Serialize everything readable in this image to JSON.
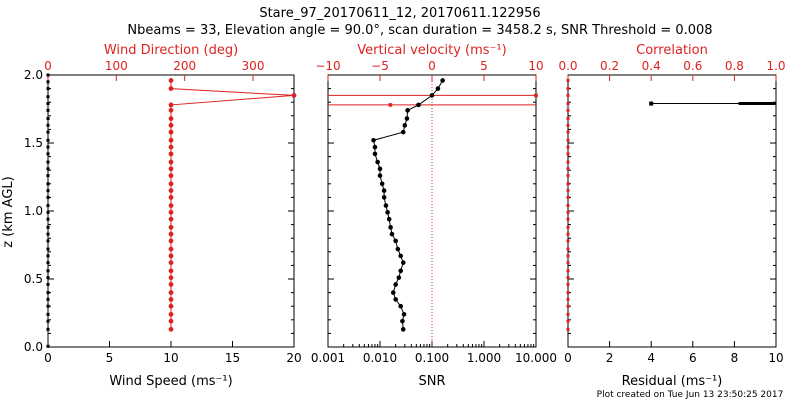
{
  "title_line1": "Stare_97_20170611_12, 20170611.122956",
  "title_line2": "Nbeams = 33, Elevation angle = 90.0°, scan duration = 3458.2 s, SNR Threshold = 0.008",
  "footer": "Plot created on Tue Jun 13 23:50:25 2017",
  "colors": {
    "axis": "#000000",
    "red": "#dd2222",
    "black": "#000000"
  },
  "chart_data": [
    {
      "type": "scatter",
      "name": "wind",
      "ylabel": "z (km AGL)",
      "ylim": [
        0,
        2.0
      ],
      "yticks": [
        "0.0",
        "0.5",
        "1.0",
        "1.5",
        "2.0"
      ],
      "yticks_values": [
        0,
        0.5,
        1.0,
        1.5,
        2.0
      ],
      "bottom_axis": {
        "label": "Wind Speed (ms⁻¹)",
        "lim": [
          0,
          20
        ],
        "ticks": [
          "0",
          "5",
          "10",
          "15",
          "20"
        ],
        "tick_values": [
          0,
          5,
          10,
          15,
          20
        ]
      },
      "top_axis": {
        "label": "Wind Direction (deg)",
        "lim": [
          0,
          360
        ],
        "ticks": [
          "0",
          "100",
          "200",
          "300"
        ],
        "tick_values": [
          0,
          100,
          200,
          300
        ]
      },
      "speed_z": [
        0.005,
        0.13,
        0.19,
        0.24,
        0.3,
        0.35,
        0.4,
        0.46,
        0.51,
        0.56,
        0.62,
        0.67,
        0.72,
        0.78,
        0.83,
        0.88,
        0.94,
        0.99,
        1.04,
        1.1,
        1.15,
        1.2,
        1.26,
        1.31,
        1.36,
        1.42,
        1.47,
        1.52,
        1.58,
        1.63,
        1.68,
        1.74,
        1.79,
        1.84,
        1.9,
        1.95,
        2.0
      ],
      "speed_values": [
        0,
        0,
        0,
        0,
        0,
        0,
        0,
        0,
        0,
        0,
        0,
        0,
        0,
        0,
        0,
        0,
        0,
        0,
        0,
        0,
        0,
        0,
        0,
        0,
        0,
        0,
        0,
        0,
        0,
        0,
        0,
        0,
        0,
        0,
        0,
        0,
        0
      ],
      "direction": {
        "z": [
          0.13,
          0.19,
          0.24,
          0.3,
          0.35,
          0.4,
          0.46,
          0.51,
          0.56,
          0.62,
          0.67,
          0.72,
          0.78,
          0.83,
          0.88,
          0.94,
          0.99,
          1.04,
          1.1,
          1.15,
          1.2,
          1.26,
          1.31,
          1.36,
          1.42,
          1.47,
          1.52,
          1.58,
          1.63,
          1.68,
          1.74,
          1.78,
          1.85,
          1.9,
          1.96
        ],
        "values": [
          180,
          180,
          180,
          180,
          180,
          180,
          180,
          180,
          180,
          180,
          180,
          180,
          180,
          180,
          180,
          180,
          180,
          180,
          180,
          180,
          180,
          180,
          180,
          180,
          180,
          180,
          180,
          180,
          180,
          180,
          180,
          180,
          360,
          180,
          180
        ]
      }
    },
    {
      "type": "line",
      "name": "velocity",
      "ylim": [
        0,
        2.0
      ],
      "bottom_axis": {
        "label": "SNR",
        "scale": "log",
        "lim": [
          0.001,
          10.0
        ],
        "ticks": [
          "0.001",
          "0.010",
          "0.100",
          "1.000",
          "10.000"
        ],
        "tick_values": [
          0.001,
          0.01,
          0.1,
          1.0,
          10.0
        ]
      },
      "top_axis": {
        "label": "Vertical velocity (ms⁻¹)",
        "lim": [
          -10,
          10
        ],
        "ticks": [
          "−10",
          "−5",
          "0",
          "5",
          "10"
        ],
        "tick_values": [
          -10,
          -5,
          0,
          5,
          10
        ]
      },
      "snr": {
        "z": [
          0.13,
          0.19,
          0.24,
          0.3,
          0.35,
          0.4,
          0.46,
          0.51,
          0.56,
          0.62,
          0.67,
          0.72,
          0.78,
          0.83,
          0.88,
          0.94,
          0.99,
          1.04,
          1.1,
          1.15,
          1.2,
          1.26,
          1.31,
          1.36,
          1.42,
          1.47,
          1.52,
          1.58,
          1.63,
          1.68,
          1.74,
          1.78,
          1.85,
          1.9,
          1.96
        ],
        "values": [
          0.028,
          0.027,
          0.029,
          0.025,
          0.02,
          0.018,
          0.02,
          0.023,
          0.025,
          0.028,
          0.025,
          0.022,
          0.02,
          0.017,
          0.016,
          0.015,
          0.014,
          0.013,
          0.012,
          0.012,
          0.011,
          0.01,
          0.01,
          0.009,
          0.008,
          0.008,
          0.0075,
          0.028,
          0.03,
          0.033,
          0.034,
          0.055,
          0.1,
          0.13,
          0.16
        ]
      },
      "vertical_velocity": {
        "z": [
          1.78,
          1.85
        ],
        "values": [
          -4.0,
          10.0
        ]
      }
    },
    {
      "type": "scatter",
      "name": "correlation",
      "ylim": [
        0,
        2.0
      ],
      "bottom_axis": {
        "label": "Residual (ms⁻¹)",
        "lim": [
          0,
          10
        ],
        "ticks": [
          "0",
          "2",
          "4",
          "6",
          "8",
          "10"
        ],
        "tick_values": [
          0,
          2,
          4,
          6,
          8,
          10
        ]
      },
      "top_axis": {
        "label": "Correlation",
        "lim": [
          0.0,
          1.0
        ],
        "ticks": [
          "0.0",
          "0.2",
          "0.4",
          "0.6",
          "0.8",
          "1.0"
        ],
        "tick_values": [
          0.0,
          0.2,
          0.4,
          0.6,
          0.8,
          1.0
        ]
      },
      "correlation": {
        "z": [
          0.13,
          0.19,
          0.24,
          0.3,
          0.35,
          0.4,
          0.46,
          0.51,
          0.56,
          0.62,
          0.67,
          0.72,
          0.78,
          0.83,
          0.88,
          0.94,
          0.99,
          1.04,
          1.1,
          1.15,
          1.2,
          1.26,
          1.31,
          1.36,
          1.42,
          1.47,
          1.52,
          1.58,
          1.63,
          1.68,
          1.74,
          1.79,
          1.85,
          1.9,
          1.96
        ],
        "values": [
          0,
          0,
          0,
          0,
          0,
          0,
          0,
          0,
          0,
          0,
          0,
          0,
          0,
          0,
          0,
          0,
          0,
          0,
          0,
          0,
          0,
          0,
          0,
          0,
          0,
          0,
          0,
          0,
          0,
          0,
          0,
          0,
          0,
          0,
          0
        ]
      },
      "residual": {
        "z": [
          1.79
        ],
        "values": [
          4.0
        ],
        "bar_to": 10.0
      }
    }
  ]
}
